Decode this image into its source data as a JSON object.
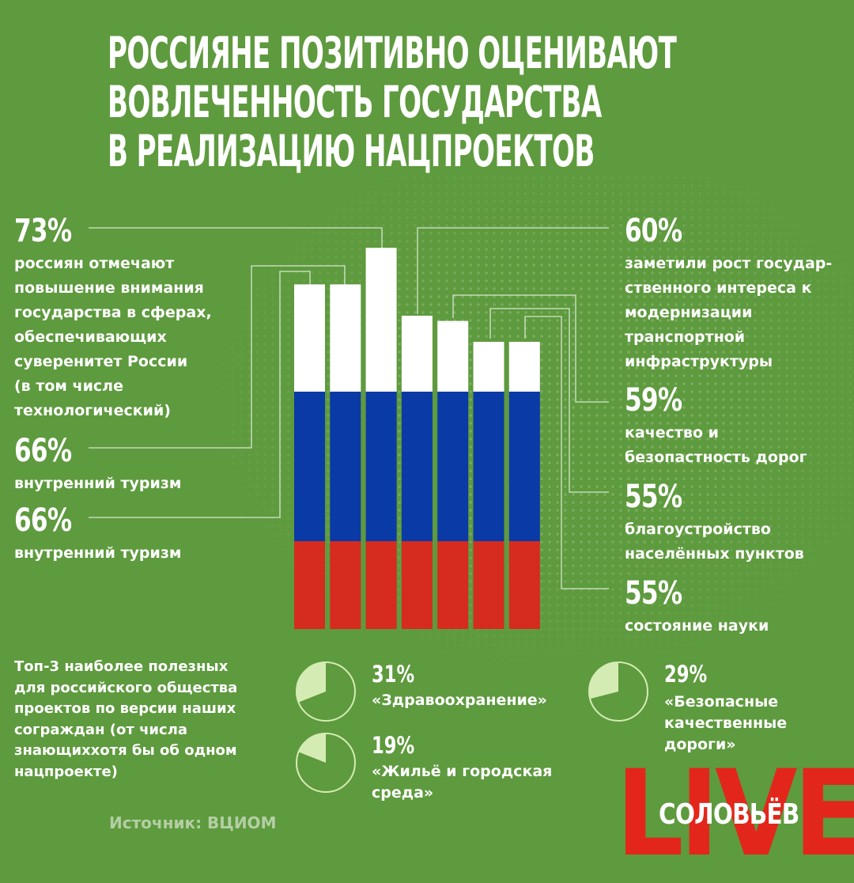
{
  "title_lines": [
    "РОССИЯНЕ ПОЗИТИВНО ОЦЕНИВАЮТ",
    "ВОВЛЕЧЕННОСТЬ ГОСУДАРСТВА",
    "В РЕАЛИЗАЦИЮ НАЦПРОЕКТОВ"
  ],
  "chart_data": {
    "type": "bar",
    "categories": [
      "внутренний туризм",
      "внутренний туризм",
      "россиян отмечают повышение внимания государства в сферах, обеспечивающих суверенитет России (в том числе технологический)",
      "заметили рост государственного интереса к модернизации транспортной инфраструктуры",
      "качество и безопастность дорог",
      "благоустройство населённых пунктов",
      "состояние науки"
    ],
    "values": [
      66,
      66,
      73,
      60,
      59,
      55,
      55
    ],
    "bar_colors": [
      "#ffffff",
      "#0a3aa6",
      "#d62b1f"
    ]
  },
  "stats_left": [
    {
      "pct": "73%",
      "desc_lines": [
        "россиян отмечают",
        "повышение внимания",
        "государства в сферах,",
        "обеспечивающих",
        "суверенитет России",
        "(в том числе",
        "технологический)"
      ]
    },
    {
      "pct": "66%",
      "desc_lines": [
        "внутренний туризм"
      ]
    },
    {
      "pct": "66%",
      "desc_lines": [
        "внутренний туризм"
      ]
    }
  ],
  "stats_right": [
    {
      "pct": "60%",
      "desc_lines": [
        "заметили рост государ-",
        "ственного интереса к",
        "модернизации",
        "транспортной",
        "инфраструктуры"
      ]
    },
    {
      "pct": "59%",
      "desc_lines": [
        "качество и",
        "безопастность дорог"
      ]
    },
    {
      "pct": "55%",
      "desc_lines": [
        "благоустройство",
        "населённых пунктов"
      ]
    },
    {
      "pct": "55%",
      "desc_lines": [
        "состояние науки"
      ]
    }
  ],
  "top3": {
    "heading_lines": [
      "Топ-3 наиболее полезных",
      "для российского общества",
      "проектов по версии наших",
      "сограждан (от числа",
      "знающиххотя бы об одном",
      "нацпроекте)"
    ],
    "items": [
      {
        "pct": "31%",
        "value": 31,
        "label_lines": [
          "«Здравоохранение»"
        ]
      },
      {
        "pct": "19%",
        "value": 19,
        "label_lines": [
          "«Жильё и городская",
          "среда»"
        ]
      },
      {
        "pct": "29%",
        "value": 29,
        "label_lines": [
          "«Безопасные",
          "качественные",
          "дороги»"
        ]
      }
    ]
  },
  "source": "Источник: ВЦИОМ",
  "logo": {
    "live": "LIVE",
    "name": "СОЛОВЬЁВ"
  },
  "colors": {
    "background": "#5e9a3e",
    "pie_fill": "#d4ecb4",
    "logo_red": "#e3261b",
    "source_text": "#b4cfa4"
  }
}
